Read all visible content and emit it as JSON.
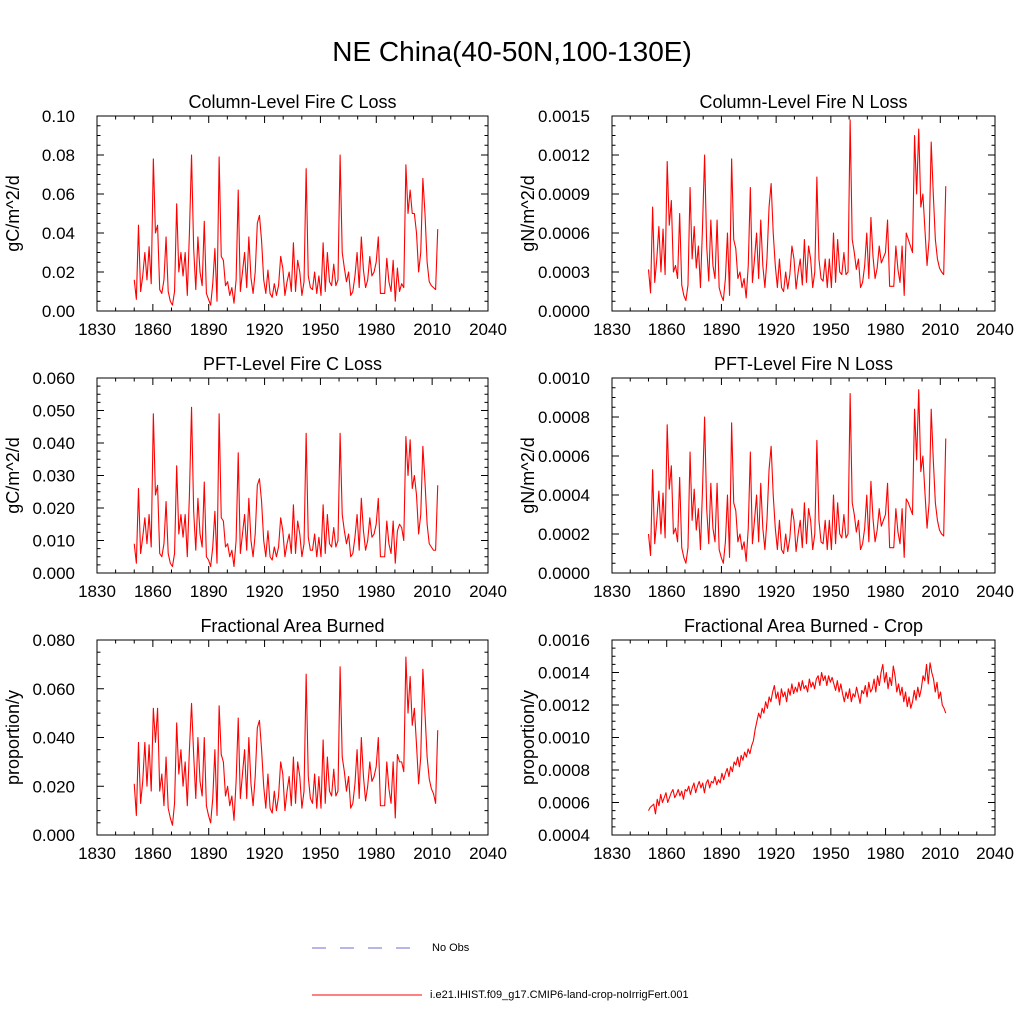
{
  "page_title": "NE China(40-50N,100-130E)",
  "legend": [
    {
      "label": "No Obs",
      "color": "#6c6ccf",
      "dash": true
    },
    {
      "label": "i.e21.IHIST.f09_g17.CMIP6-land-crop-noIrrigFert.001",
      "color": "#ff0000",
      "dash": false
    }
  ],
  "series_color": "#ff0000",
  "chart_data": [
    {
      "type": "line",
      "title": "Column-Level Fire C Loss",
      "ylabel": "gC/m^2/d",
      "xlim": [
        1830,
        2040
      ],
      "ylim": [
        0,
        0.1
      ],
      "yticks": [
        "0.00",
        "0.02",
        "0.04",
        "0.06",
        "0.08",
        "0.10"
      ],
      "xticks": [
        "1830",
        "1860",
        "1890",
        "1920",
        "1950",
        "1980",
        "2010",
        "2040"
      ],
      "x_start": 1850,
      "values": [
        0.016,
        0.006,
        0.044,
        0.01,
        0.018,
        0.03,
        0.016,
        0.033,
        0.014,
        0.078,
        0.04,
        0.044,
        0.011,
        0.009,
        0.016,
        0.038,
        0.01,
        0.005,
        0.003,
        0.01,
        0.055,
        0.02,
        0.03,
        0.018,
        0.03,
        0.008,
        0.04,
        0.08,
        0.032,
        0.011,
        0.038,
        0.02,
        0.013,
        0.046,
        0.009,
        0.006,
        0.003,
        0.014,
        0.032,
        0.005,
        0.079,
        0.028,
        0.026,
        0.013,
        0.015,
        0.008,
        0.012,
        0.004,
        0.016,
        0.062,
        0.01,
        0.02,
        0.03,
        0.012,
        0.038,
        0.017,
        0.009,
        0.02,
        0.045,
        0.049,
        0.036,
        0.016,
        0.009,
        0.021,
        0.009,
        0.007,
        0.014,
        0.008,
        0.013,
        0.028,
        0.022,
        0.008,
        0.015,
        0.02,
        0.01,
        0.035,
        0.01,
        0.026,
        0.02,
        0.008,
        0.015,
        0.073,
        0.018,
        0.012,
        0.011,
        0.02,
        0.009,
        0.018,
        0.008,
        0.035,
        0.01,
        0.03,
        0.015,
        0.013,
        0.024,
        0.013,
        0.016,
        0.08,
        0.03,
        0.022,
        0.015,
        0.02,
        0.008,
        0.01,
        0.018,
        0.03,
        0.012,
        0.038,
        0.021,
        0.012,
        0.016,
        0.028,
        0.018,
        0.02,
        0.025,
        0.038,
        0.009,
        0.009,
        0.009,
        0.027,
        0.015,
        0.01,
        0.026,
        0.005,
        0.022,
        0.01,
        0.014,
        0.012,
        0.075,
        0.05,
        0.062,
        0.05,
        0.05,
        0.04,
        0.02,
        0.03,
        0.068,
        0.05,
        0.025,
        0.015,
        0.013,
        0.012,
        0.011,
        0.042
      ]
    },
    {
      "type": "line",
      "title": "Column-Level Fire N Loss",
      "ylabel": "gN/m^2/d",
      "xlim": [
        1830,
        2040
      ],
      "ylim": [
        0,
        0.0015
      ],
      "yticks": [
        "0.0000",
        "0.0003",
        "0.0006",
        "0.0009",
        "0.0012",
        "0.0015"
      ],
      "xticks": [
        "1830",
        "1860",
        "1890",
        "1920",
        "1950",
        "1980",
        "2010",
        "2040"
      ],
      "x_start": 1850,
      "values": [
        0.00032,
        0.00014,
        0.0008,
        0.00022,
        0.0004,
        0.00065,
        0.0003,
        0.00063,
        0.00028,
        0.00115,
        0.00066,
        0.00085,
        0.0003,
        0.00035,
        0.00025,
        0.00075,
        0.0002,
        0.00012,
        8e-05,
        0.0002,
        0.00095,
        0.0004,
        0.00065,
        0.00033,
        0.0005,
        0.00018,
        0.00065,
        0.0012,
        0.0005,
        0.00023,
        0.0007,
        0.00035,
        0.00025,
        0.0007,
        0.00018,
        0.00012,
        8e-05,
        0.00025,
        0.0006,
        0.00012,
        0.00117,
        0.00055,
        0.00048,
        0.00025,
        0.0003,
        0.00018,
        0.00025,
        0.0001,
        0.00035,
        0.00095,
        0.00022,
        0.0004,
        0.0006,
        0.00025,
        0.0007,
        0.00035,
        0.00018,
        0.0004,
        0.0008,
        0.00098,
        0.0006,
        0.00035,
        0.00018,
        0.0004,
        0.00018,
        0.00015,
        0.0003,
        0.00017,
        0.00028,
        0.0005,
        0.0004,
        0.00017,
        0.0003,
        0.0004,
        0.0002,
        0.00055,
        0.00022,
        0.0005,
        0.0004,
        0.00018,
        0.0003,
        0.00103,
        0.0004,
        0.00025,
        0.00023,
        0.0004,
        0.00018,
        0.0004,
        0.00018,
        0.0006,
        0.00022,
        0.00055,
        0.0003,
        0.00028,
        0.00045,
        0.00028,
        0.0003,
        0.00147,
        0.00055,
        0.00045,
        0.00032,
        0.0004,
        0.00018,
        0.00022,
        0.00035,
        0.0006,
        0.00025,
        0.00072,
        0.00042,
        0.00025,
        0.00033,
        0.0005,
        0.00037,
        0.00041,
        0.00045,
        0.0007,
        0.00019,
        0.00019,
        0.00019,
        0.0005,
        0.00032,
        0.00022,
        0.0005,
        0.00012,
        0.0006,
        0.00055,
        0.0005,
        0.00045,
        0.00135,
        0.0009,
        0.0014,
        0.0008,
        0.0009,
        0.00062,
        0.00035,
        0.00055,
        0.0013,
        0.0009,
        0.00055,
        0.0004,
        0.00033,
        0.0003,
        0.00028,
        0.00096
      ]
    },
    {
      "type": "line",
      "title": "PFT-Level Fire C Loss",
      "ylabel": "gC/m^2/d",
      "xlim": [
        1830,
        2040
      ],
      "ylim": [
        0,
        0.06
      ],
      "yticks": [
        "0.000",
        "0.010",
        "0.020",
        "0.030",
        "0.040",
        "0.050",
        "0.060"
      ],
      "xticks": [
        "1830",
        "1860",
        "1890",
        "1920",
        "1950",
        "1980",
        "2010",
        "2040"
      ],
      "x_start": 1850,
      "values": [
        0.009,
        0.003,
        0.026,
        0.006,
        0.011,
        0.017,
        0.009,
        0.018,
        0.008,
        0.049,
        0.024,
        0.027,
        0.006,
        0.005,
        0.009,
        0.022,
        0.006,
        0.003,
        0.002,
        0.006,
        0.033,
        0.012,
        0.018,
        0.011,
        0.018,
        0.005,
        0.024,
        0.051,
        0.019,
        0.007,
        0.023,
        0.012,
        0.008,
        0.028,
        0.005,
        0.004,
        0.002,
        0.008,
        0.019,
        0.003,
        0.049,
        0.017,
        0.016,
        0.008,
        0.009,
        0.005,
        0.007,
        0.002,
        0.01,
        0.037,
        0.006,
        0.012,
        0.018,
        0.007,
        0.023,
        0.01,
        0.005,
        0.012,
        0.027,
        0.029,
        0.022,
        0.01,
        0.005,
        0.013,
        0.005,
        0.004,
        0.008,
        0.005,
        0.008,
        0.017,
        0.013,
        0.005,
        0.009,
        0.012,
        0.006,
        0.021,
        0.006,
        0.016,
        0.012,
        0.005,
        0.009,
        0.043,
        0.011,
        0.007,
        0.007,
        0.012,
        0.005,
        0.011,
        0.005,
        0.021,
        0.006,
        0.018,
        0.009,
        0.008,
        0.014,
        0.008,
        0.01,
        0.043,
        0.018,
        0.013,
        0.009,
        0.012,
        0.005,
        0.006,
        0.011,
        0.018,
        0.007,
        0.023,
        0.013,
        0.007,
        0.01,
        0.017,
        0.011,
        0.012,
        0.015,
        0.023,
        0.005,
        0.005,
        0.005,
        0.016,
        0.009,
        0.006,
        0.016,
        0.003,
        0.013,
        0.015,
        0.014,
        0.01,
        0.042,
        0.03,
        0.041,
        0.026,
        0.03,
        0.024,
        0.012,
        0.018,
        0.039,
        0.028,
        0.015,
        0.009,
        0.008,
        0.007,
        0.007,
        0.027
      ]
    },
    {
      "type": "line",
      "title": "PFT-Level Fire N Loss",
      "ylabel": "gN/m^2/d",
      "xlim": [
        1830,
        2040
      ],
      "ylim": [
        0,
        0.001
      ],
      "yticks": [
        "0.0000",
        "0.0002",
        "0.0004",
        "0.0006",
        "0.0008",
        "0.0010"
      ],
      "xticks": [
        "1830",
        "1860",
        "1890",
        "1920",
        "1950",
        "1980",
        "2010",
        "2040"
      ],
      "x_start": 1850,
      "values": [
        0.0002,
        9e-05,
        0.00053,
        0.00015,
        0.00027,
        0.00042,
        0.0002,
        0.00041,
        0.00018,
        0.00076,
        0.00043,
        0.00055,
        0.0002,
        0.00023,
        0.00016,
        0.00049,
        0.00013,
        8e-05,
        5e-05,
        0.00013,
        0.00062,
        0.00027,
        0.00043,
        0.00022,
        0.00033,
        0.00012,
        0.00043,
        0.0008,
        0.00033,
        0.00015,
        0.00046,
        0.00023,
        0.00016,
        0.00046,
        0.00012,
        8e-05,
        5e-05,
        0.00016,
        0.0004,
        8e-05,
        0.00077,
        0.00036,
        0.00032,
        0.00016,
        0.0002,
        0.00012,
        0.00016,
        6e-05,
        0.00023,
        0.00062,
        0.00015,
        0.00027,
        0.0004,
        0.00016,
        0.00046,
        0.00023,
        0.00012,
        0.00027,
        0.00053,
        0.00065,
        0.0004,
        0.00023,
        0.00012,
        0.00027,
        0.00012,
        0.0001,
        0.0002,
        0.00011,
        0.00018,
        0.00033,
        0.00027,
        0.00011,
        0.0002,
        0.00027,
        0.00013,
        0.00036,
        0.00015,
        0.00033,
        0.00027,
        0.00012,
        0.0002,
        0.00068,
        0.00027,
        0.00016,
        0.00015,
        0.00027,
        0.00012,
        0.00027,
        0.00012,
        0.0004,
        0.00015,
        0.00036,
        0.0002,
        0.00018,
        0.0003,
        0.00018,
        0.0002,
        0.00092,
        0.00036,
        0.0003,
        0.00021,
        0.00027,
        0.00012,
        0.00015,
        0.00023,
        0.0004,
        0.00016,
        0.00047,
        0.00028,
        0.00016,
        0.00022,
        0.00033,
        0.00024,
        0.00027,
        0.0003,
        0.00046,
        0.00013,
        0.00013,
        0.00013,
        0.00033,
        0.00021,
        0.00015,
        0.00033,
        8e-05,
        0.00038,
        0.00036,
        0.00033,
        0.0003,
        0.00084,
        0.00058,
        0.00094,
        0.00052,
        0.0006,
        0.00041,
        0.00023,
        0.00036,
        0.00084,
        0.00058,
        0.00036,
        0.00027,
        0.00022,
        0.0002,
        0.00019,
        0.00069
      ]
    },
    {
      "type": "line",
      "title": "Fractional Area Burned",
      "ylabel": "proportion/y",
      "xlim": [
        1830,
        2040
      ],
      "ylim": [
        0,
        0.08
      ],
      "yticks": [
        "0.000",
        "0.020",
        "0.040",
        "0.060",
        "0.080"
      ],
      "xticks": [
        "1830",
        "1860",
        "1890",
        "1920",
        "1950",
        "1980",
        "2010",
        "2040"
      ],
      "x_start": 1850,
      "values": [
        0.021,
        0.008,
        0.038,
        0.013,
        0.022,
        0.038,
        0.02,
        0.037,
        0.018,
        0.052,
        0.038,
        0.052,
        0.018,
        0.025,
        0.012,
        0.032,
        0.011,
        0.007,
        0.004,
        0.013,
        0.046,
        0.025,
        0.035,
        0.02,
        0.03,
        0.012,
        0.035,
        0.054,
        0.033,
        0.015,
        0.04,
        0.022,
        0.016,
        0.04,
        0.012,
        0.008,
        0.005,
        0.015,
        0.035,
        0.008,
        0.053,
        0.033,
        0.03,
        0.016,
        0.02,
        0.012,
        0.016,
        0.006,
        0.022,
        0.048,
        0.015,
        0.025,
        0.035,
        0.015,
        0.04,
        0.021,
        0.012,
        0.024,
        0.044,
        0.047,
        0.035,
        0.02,
        0.011,
        0.025,
        0.011,
        0.009,
        0.018,
        0.01,
        0.016,
        0.03,
        0.025,
        0.01,
        0.018,
        0.024,
        0.012,
        0.032,
        0.013,
        0.03,
        0.024,
        0.011,
        0.018,
        0.066,
        0.024,
        0.015,
        0.013,
        0.025,
        0.011,
        0.024,
        0.011,
        0.039,
        0.013,
        0.032,
        0.018,
        0.016,
        0.027,
        0.016,
        0.018,
        0.069,
        0.032,
        0.026,
        0.018,
        0.024,
        0.011,
        0.013,
        0.021,
        0.035,
        0.015,
        0.04,
        0.024,
        0.014,
        0.02,
        0.03,
        0.022,
        0.024,
        0.028,
        0.04,
        0.012,
        0.012,
        0.012,
        0.03,
        0.019,
        0.013,
        0.03,
        0.007,
        0.033,
        0.03,
        0.03,
        0.026,
        0.073,
        0.05,
        0.065,
        0.045,
        0.052,
        0.037,
        0.021,
        0.032,
        0.068,
        0.05,
        0.032,
        0.023,
        0.019,
        0.017,
        0.013,
        0.043
      ]
    },
    {
      "type": "line",
      "title": "Fractional Area Burned - Crop",
      "ylabel": "proportion/y",
      "xlim": [
        1830,
        2040
      ],
      "ylim": [
        0.0004,
        0.0016
      ],
      "yticks": [
        "0.0004",
        "0.0006",
        "0.0008",
        "0.0010",
        "0.0012",
        "0.0014",
        "0.0016"
      ],
      "xticks": [
        "1830",
        "1860",
        "1890",
        "1920",
        "1950",
        "1980",
        "2010",
        "2040"
      ],
      "x_start": 1850,
      "values": [
        0.00055,
        0.00057,
        0.00058,
        0.00059,
        0.00053,
        0.00062,
        0.00058,
        0.00065,
        0.0006,
        0.00063,
        0.00066,
        0.0006,
        0.00063,
        0.00066,
        0.00068,
        0.00063,
        0.00065,
        0.00068,
        0.00064,
        0.00067,
        0.00062,
        0.00068,
        0.00067,
        0.0007,
        0.00065,
        0.00069,
        0.00072,
        0.00066,
        0.0007,
        0.00073,
        0.00069,
        0.00072,
        0.00066,
        0.00072,
        0.00074,
        0.00069,
        0.00073,
        0.00072,
        0.00076,
        0.00071,
        0.00074,
        0.00072,
        0.00078,
        0.00074,
        0.00078,
        0.00081,
        0.00076,
        0.00082,
        0.00079,
        0.00085,
        0.00083,
        0.00088,
        0.00082,
        0.00089,
        0.00086,
        0.00091,
        0.00088,
        0.00093,
        0.0009,
        0.00095,
        0.00098,
        0.00105,
        0.0011,
        0.00115,
        0.00112,
        0.00118,
        0.00115,
        0.00122,
        0.00118,
        0.00125,
        0.00122,
        0.00128,
        0.00132,
        0.00124,
        0.00128,
        0.0012,
        0.0013,
        0.00125,
        0.00128,
        0.00122,
        0.0013,
        0.00126,
        0.00133,
        0.00127,
        0.00131,
        0.00128,
        0.00134,
        0.00129,
        0.00135,
        0.0013,
        0.00132,
        0.00128,
        0.00136,
        0.00131,
        0.00134,
        0.0013,
        0.00136,
        0.00138,
        0.00132,
        0.0014,
        0.00135,
        0.00138,
        0.00132,
        0.00138,
        0.00134,
        0.00137,
        0.00133,
        0.00129,
        0.00135,
        0.00128,
        0.00133,
        0.00127,
        0.00122,
        0.00128,
        0.00124,
        0.0013,
        0.00122,
        0.00127,
        0.00125,
        0.00131,
        0.00126,
        0.00121,
        0.00129,
        0.00127,
        0.00132,
        0.00125,
        0.00134,
        0.00128,
        0.0013,
        0.00136,
        0.00128,
        0.00138,
        0.00132,
        0.0014,
        0.00145,
        0.00134,
        0.0014,
        0.0013,
        0.00137,
        0.00132,
        0.00144,
        0.00138,
        0.00128,
        0.00133,
        0.00126,
        0.00131,
        0.00122,
        0.00128,
        0.00119,
        0.00125,
        0.00118,
        0.00122,
        0.00129,
        0.00123,
        0.00131,
        0.00125,
        0.0013,
        0.00138,
        0.00135,
        0.00145,
        0.00133,
        0.00146,
        0.0014,
        0.00136,
        0.00128,
        0.00134,
        0.00124,
        0.00128,
        0.0012,
        0.00118,
        0.00115
      ]
    }
  ]
}
